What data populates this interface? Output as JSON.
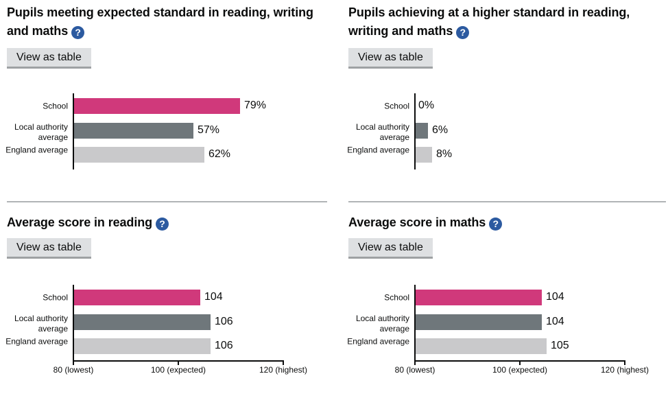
{
  "button_label": "View as table",
  "help_icon": {
    "glyph": "?",
    "bg_color": "#2c5aa0"
  },
  "colors": {
    "school": "#d0397b",
    "local_authority": "#6f777b",
    "england": "#c9c9cb",
    "axis": "#0b0c0c",
    "divider": "#b1b4b6",
    "button_bg": "#dee0e2",
    "button_border": "#9ea1a3",
    "text": "#0b0c0c"
  },
  "chart_data": [
    {
      "id": "expected-standard",
      "type": "bar",
      "title": "Pupils meeting expected standard in reading, writing and maths",
      "title_lines": [
        "Pupils meeting expected standard in reading, writing",
        "and maths"
      ],
      "categories": [
        "School",
        "Local authority average",
        "England average"
      ],
      "values": [
        79,
        57,
        62
      ],
      "value_labels": [
        "79%",
        "57%",
        "62%"
      ],
      "xlim": [
        0,
        100
      ],
      "x_ticks": []
    },
    {
      "id": "higher-standard",
      "type": "bar",
      "title": "Pupils achieving at a higher standard in reading, writing and maths",
      "title_lines": [
        "Pupils achieving at a higher standard in reading,",
        "writing and maths"
      ],
      "categories": [
        "School",
        "Local authority average",
        "England average"
      ],
      "values": [
        0,
        6,
        8
      ],
      "value_labels": [
        "0%",
        "6%",
        "8%"
      ],
      "xlim": [
        0,
        100
      ],
      "x_ticks": []
    },
    {
      "id": "average-score-reading",
      "type": "bar",
      "title": "Average score in reading",
      "title_lines": [
        "Average score in reading"
      ],
      "categories": [
        "School",
        "Local authority average",
        "England average"
      ],
      "values": [
        104,
        106,
        106
      ],
      "value_labels": [
        "104",
        "106",
        "106"
      ],
      "xlim": [
        80,
        120
      ],
      "x_ticks": [
        {
          "value": 80,
          "label": "80 (lowest)"
        },
        {
          "value": 100,
          "label": "100 (expected)"
        },
        {
          "value": 120,
          "label": "120 (highest)"
        }
      ]
    },
    {
      "id": "average-score-maths",
      "type": "bar",
      "title": "Average score in maths",
      "title_lines": [
        "Average score in maths"
      ],
      "categories": [
        "School",
        "Local authority average",
        "England average"
      ],
      "values": [
        104,
        104,
        105
      ],
      "value_labels": [
        "104",
        "104",
        "105"
      ],
      "xlim": [
        80,
        120
      ],
      "x_ticks": [
        {
          "value": 80,
          "label": "80 (lowest)"
        },
        {
          "value": 100,
          "label": "100 (expected)"
        },
        {
          "value": 120,
          "label": "120 (highest)"
        }
      ]
    }
  ]
}
